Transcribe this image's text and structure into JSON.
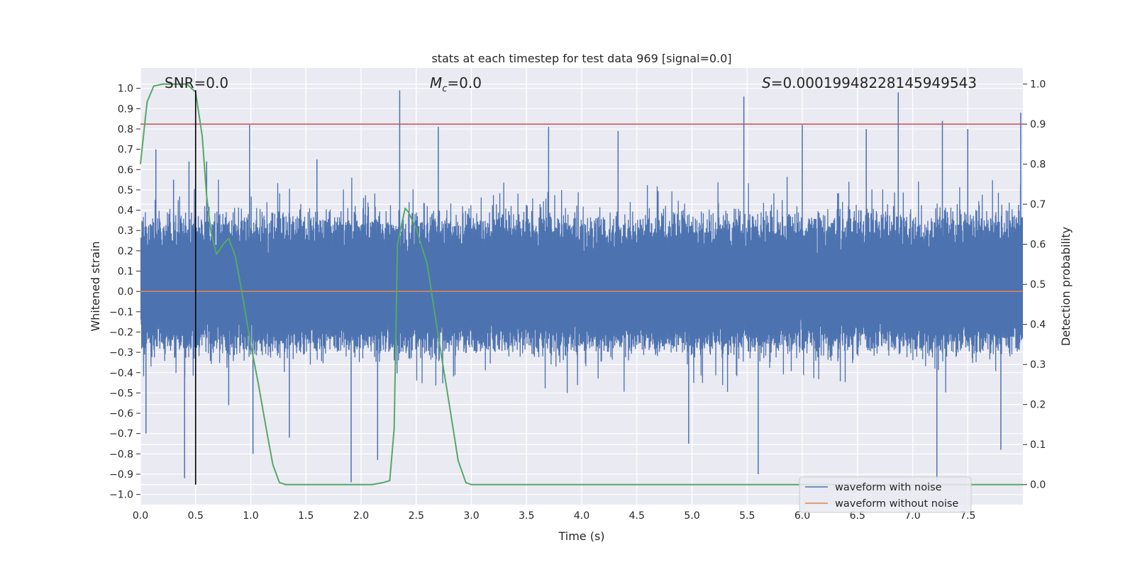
{
  "chart_data": {
    "type": "line",
    "title": "stats at each timestep for test data 969 [signal=0.0]",
    "xlabel": "Time (s)",
    "ylabel": "Whitened strain",
    "y2label": "Detection probability",
    "xlim": [
      0.0,
      8.0
    ],
    "ylim": [
      -1.05,
      1.1
    ],
    "y2lim": [
      -0.05,
      1.04
    ],
    "x_ticks": [
      "0.0",
      "0.5",
      "1.0",
      "1.5",
      "2.0",
      "2.5",
      "3.0",
      "3.5",
      "4.0",
      "4.5",
      "5.0",
      "5.5",
      "6.0",
      "6.5",
      "7.0",
      "7.5"
    ],
    "y_ticks": [
      "1.0",
      "0.9",
      "0.8",
      "0.7",
      "0.6",
      "0.5",
      "0.4",
      "0.3",
      "0.2",
      "0.1",
      "0.0",
      "−0.1",
      "−0.2",
      "−0.3",
      "−0.4",
      "−0.5",
      "−0.6",
      "−0.7",
      "−0.8",
      "−0.9",
      "−1.0"
    ],
    "y2_ticks": [
      "1.0",
      "0.9",
      "0.8",
      "0.7",
      "0.6",
      "0.5",
      "0.4",
      "0.3",
      "0.2",
      "0.1",
      "0.0"
    ],
    "grid": true,
    "legend_position": "bottom-right",
    "colors": {
      "noise": "#4c72b0",
      "clean": "#dd8452",
      "prob": "#55a868",
      "threshold": "#c44e52",
      "marker": "#000000",
      "background": "#eaeaf2",
      "grid": "#ffffff"
    },
    "annotations": {
      "snr": "SNR=0.0",
      "mc_symbol": "M",
      "mc_sub": "c",
      "mc_value": "=0.0",
      "s_symbol": "S",
      "s_value": "=0.00019948228145949543"
    },
    "series": [
      {
        "name": "waveform with noise",
        "style": "noise",
        "envelope": {
          "band": [
            -0.3,
            0.38
          ],
          "spikes": [
            [
              0.05,
              -0.7
            ],
            [
              0.14,
              0.7
            ],
            [
              0.3,
              0.55
            ],
            [
              0.4,
              -0.92
            ],
            [
              0.44,
              0.64
            ],
            [
              0.5,
              0.71
            ],
            [
              0.6,
              0.64
            ],
            [
              0.8,
              -0.56
            ],
            [
              0.99,
              0.82
            ],
            [
              1.02,
              -0.8
            ],
            [
              1.35,
              -0.72
            ],
            [
              1.6,
              0.65
            ],
            [
              1.91,
              -0.94
            ],
            [
              2.15,
              -0.83
            ],
            [
              2.35,
              0.99
            ],
            [
              2.7,
              0.81
            ],
            [
              3.7,
              0.81
            ],
            [
              4.33,
              0.79
            ],
            [
              4.97,
              -0.75
            ],
            [
              5.47,
              0.96
            ],
            [
              5.6,
              -0.9
            ],
            [
              6.0,
              0.82
            ],
            [
              6.58,
              0.8
            ],
            [
              6.87,
              0.98
            ],
            [
              7.22,
              -0.93
            ],
            [
              7.27,
              0.84
            ],
            [
              7.5,
              0.8
            ],
            [
              7.8,
              -0.78
            ],
            [
              7.98,
              0.88
            ]
          ]
        }
      },
      {
        "name": "waveform without noise",
        "style": "clean",
        "x": [
          0.0,
          8.0
        ],
        "y": [
          0.0,
          0.0
        ]
      },
      {
        "name": "detection probability",
        "style": "prob",
        "axis": "y2",
        "x": [
          0.0,
          0.06,
          0.12,
          0.2,
          0.3,
          0.42,
          0.5,
          0.56,
          0.6,
          0.64,
          0.69,
          0.75,
          0.8,
          0.86,
          0.92,
          1.0,
          1.07,
          1.14,
          1.2,
          1.26,
          1.32,
          1.4,
          1.6,
          1.9,
          2.1,
          2.2,
          2.26,
          2.3,
          2.33,
          2.36,
          2.4,
          2.43,
          2.5,
          2.6,
          2.7,
          2.8,
          2.88,
          2.95,
          3.0,
          3.3,
          4.0,
          5.0,
          6.0,
          7.0,
          8.0
        ],
        "y": [
          0.8,
          0.955,
          0.995,
          1.0,
          1.0,
          1.0,
          0.98,
          0.87,
          0.72,
          0.63,
          0.575,
          0.6,
          0.615,
          0.57,
          0.48,
          0.35,
          0.25,
          0.14,
          0.05,
          0.005,
          0.0,
          0.0,
          0.0,
          0.0,
          0.0,
          0.005,
          0.01,
          0.14,
          0.6,
          0.64,
          0.69,
          0.68,
          0.64,
          0.55,
          0.37,
          0.2,
          0.06,
          0.005,
          0.0,
          0.0,
          0.0,
          0.0,
          0.0,
          0.0,
          0.0
        ]
      }
    ],
    "threshold": {
      "axis": "y2",
      "value": 0.9
    },
    "marker_time": 0.5,
    "legend": [
      "waveform with noise",
      "waveform without noise"
    ]
  }
}
